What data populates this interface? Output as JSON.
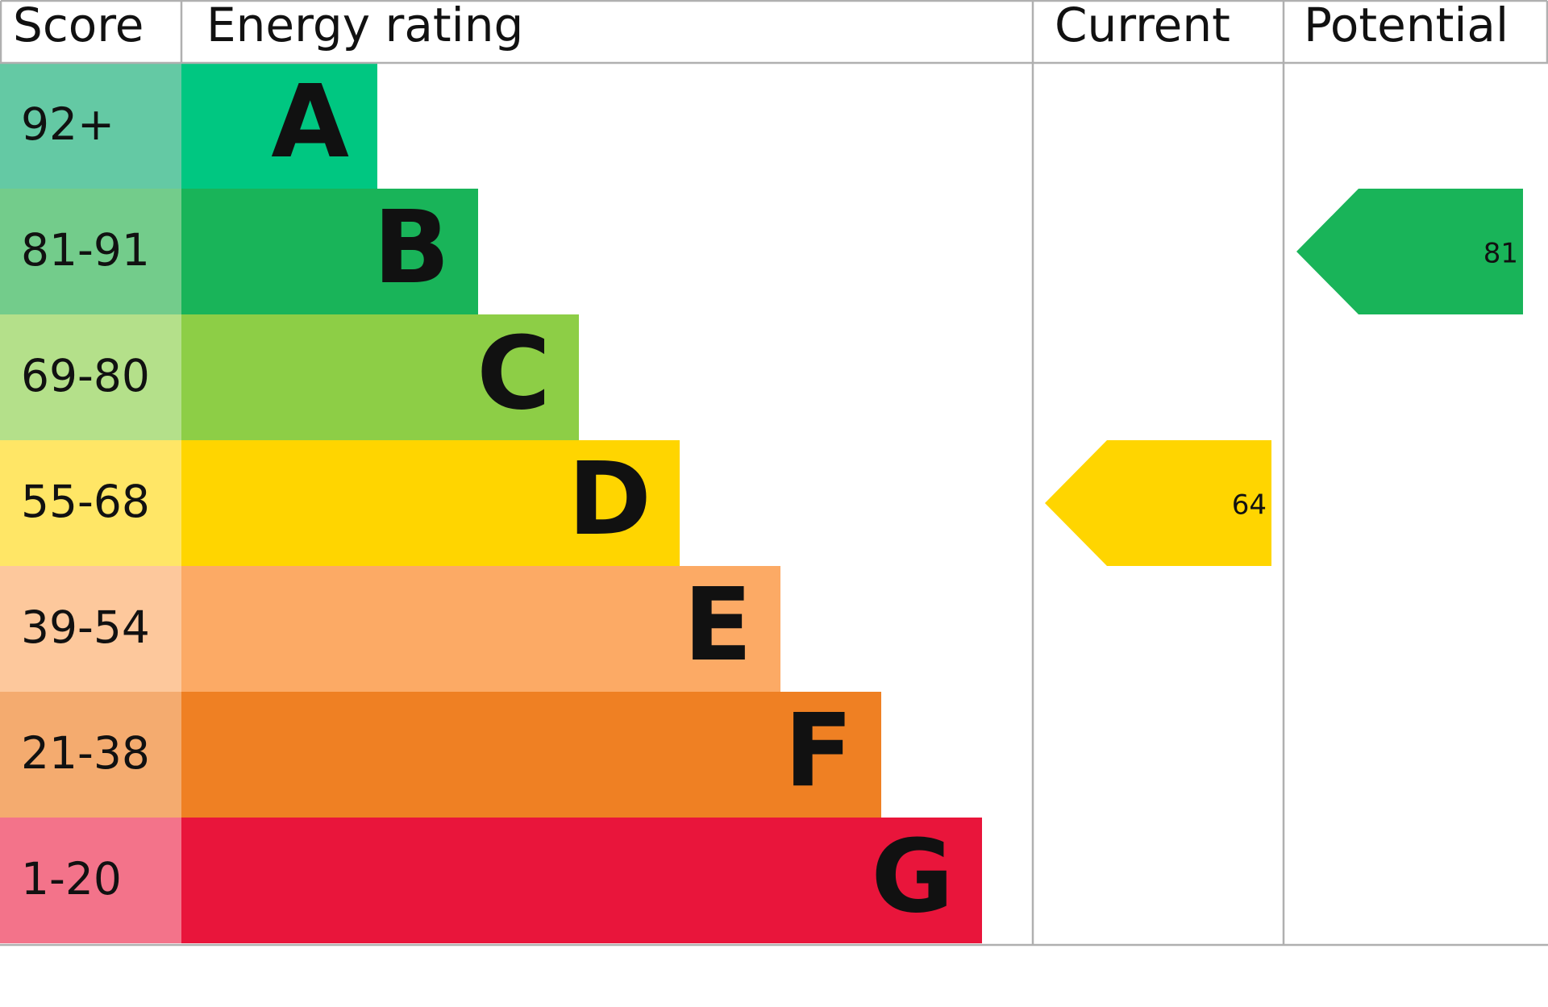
{
  "chart_data": {
    "type": "epc",
    "headers": [
      "Score",
      "Energy rating",
      "Current",
      "Potential"
    ],
    "categories": [
      "A",
      "B",
      "C",
      "D",
      "E",
      "F",
      "G"
    ],
    "scores": [
      "92+",
      "81-91",
      "69-80",
      "55-68",
      "39-54",
      "21-38",
      "1-20"
    ],
    "colors": [
      "#00c781",
      "#19b459",
      "#8dce46",
      "#ffd500",
      "#fcaa65",
      "#ef8023",
      "#e9153b"
    ],
    "score_colors": [
      "#64c9a4",
      "#73cc8b",
      "#b4e08a",
      "#ffe666",
      "#fdc89c",
      "#f4ab6f",
      "#f3738a"
    ],
    "current": 64,
    "potential": 81
  }
}
